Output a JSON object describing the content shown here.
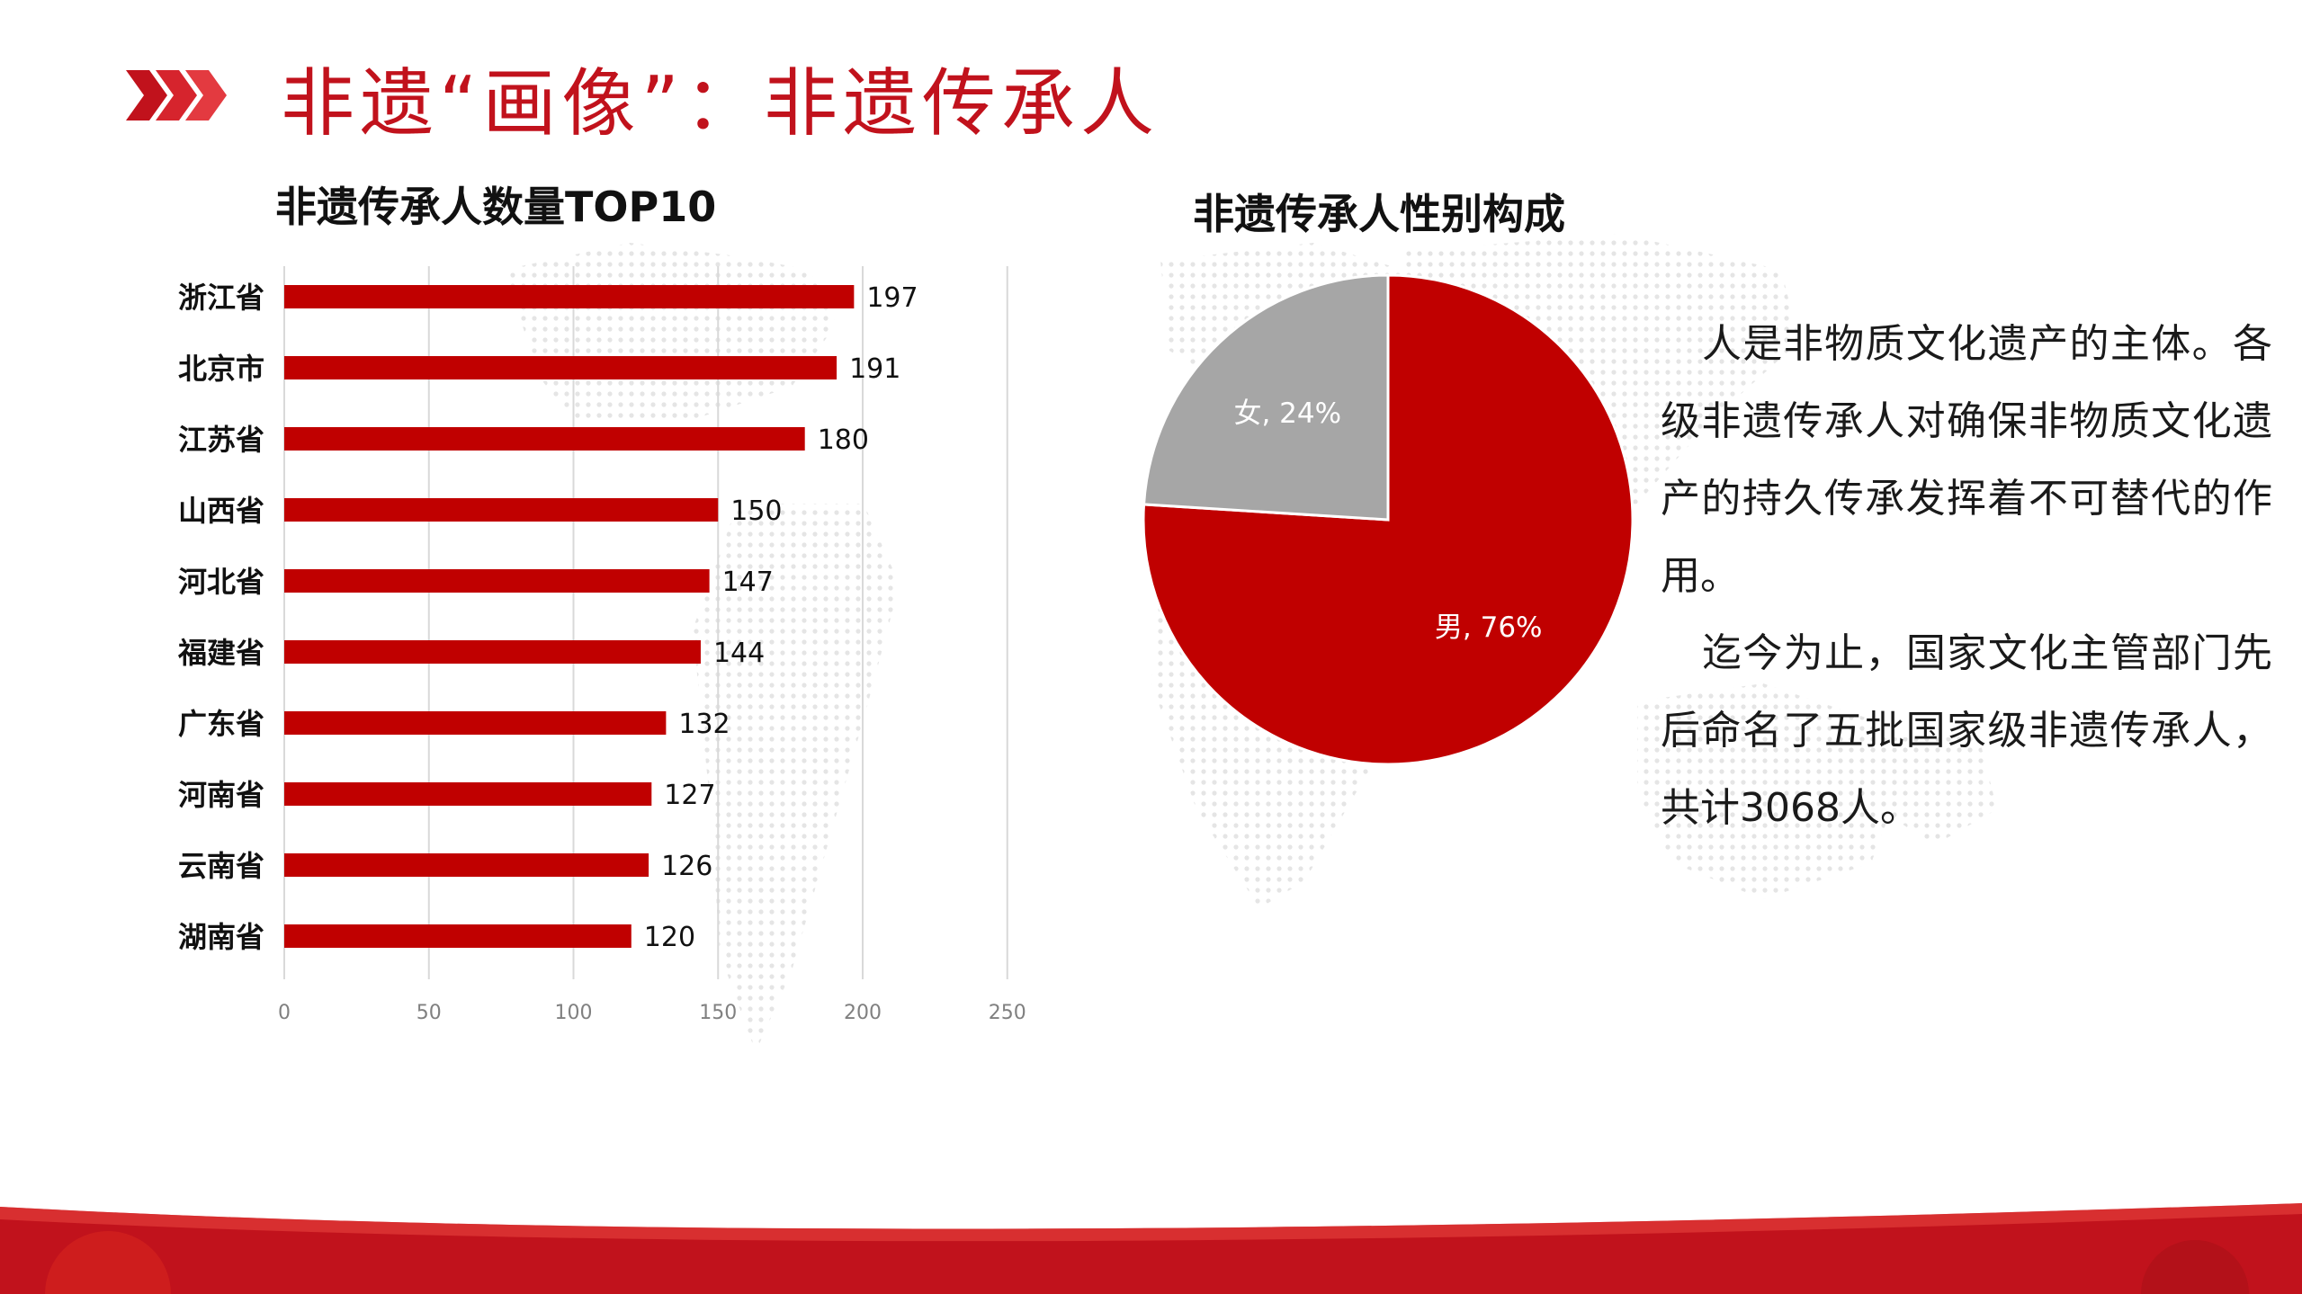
{
  "page": {
    "title": "非遗“画像”：非遗传承人",
    "accent_color": "#c00000",
    "secondary_color": "#a6a6a6",
    "decor": [
      "chevron-icon",
      "world-dot-map",
      "footer-band"
    ]
  },
  "body": {
    "paragraphs": [
      "人是非物质文化遗产的主体。各级非遗传承人对确保非物质文化遗产的持久传承发挥着不可替代的作用。",
      "迄今为止，国家文化主管部门先后命名了五批国家级非遗传承人，共计3068人。"
    ]
  },
  "chart_data": [
    {
      "type": "bar",
      "orientation": "horizontal",
      "title": "非遗传承人数量TOP10",
      "categories": [
        "浙江省",
        "北京市",
        "江苏省",
        "山西省",
        "河北省",
        "福建省",
        "广东省",
        "河南省",
        "云南省",
        "湖南省"
      ],
      "values": [
        197,
        191,
        180,
        150,
        147,
        144,
        132,
        127,
        126,
        120
      ],
      "xlim": [
        0,
        250
      ],
      "xticks": [
        0,
        50,
        100,
        150,
        200,
        250
      ],
      "grid": true,
      "data_labels": true,
      "color": "#c00000"
    },
    {
      "type": "pie",
      "title": "非遗传承人性别构成",
      "slices": [
        {
          "label": "男",
          "value": 76,
          "display": "男, 76%",
          "color": "#c00000"
        },
        {
          "label": "女",
          "value": 24,
          "display": "女, 24%",
          "color": "#a6a6a6"
        }
      ]
    }
  ]
}
